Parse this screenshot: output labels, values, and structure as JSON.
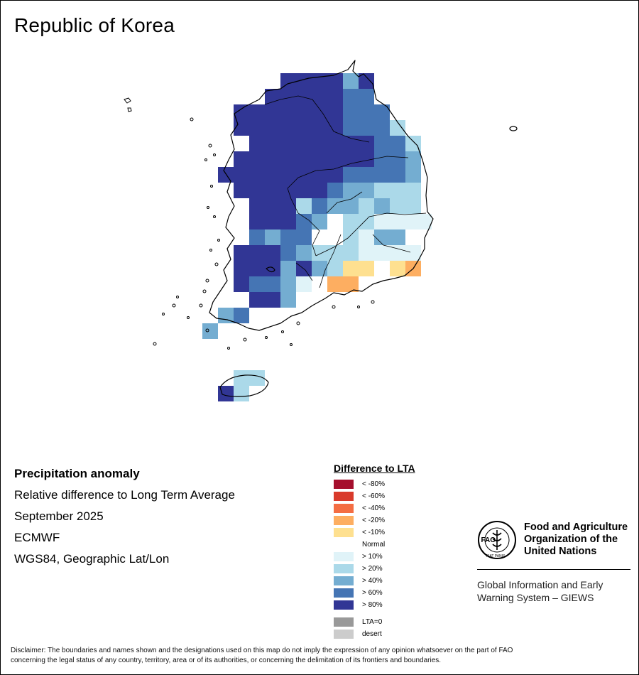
{
  "map_title": "Republic of Korea",
  "info": {
    "heading": "Precipitation anomaly",
    "line1": "Relative difference to Long Term Average",
    "line2": "September 2025",
    "line3": "ECMWF",
    "line4": "WGS84, Geographic Lat/Lon"
  },
  "legend": {
    "title": "Difference to LTA",
    "items": [
      {
        "label": "< -80%",
        "color": "#a50f2d"
      },
      {
        "label": "< -60%",
        "color": "#d93a2b"
      },
      {
        "label": "< -40%",
        "color": "#f46d43"
      },
      {
        "label": "< -20%",
        "color": "#fdae61"
      },
      {
        "label": "< -10%",
        "color": "#fee090"
      },
      {
        "label": "Normal",
        "color": "#ffffff"
      },
      {
        "label": "> 10%",
        "color": "#e0f3f8"
      },
      {
        "label": "> 20%",
        "color": "#abd9e9"
      },
      {
        "label": "> 40%",
        "color": "#74add1"
      },
      {
        "label": "> 60%",
        "color": "#4575b4"
      },
      {
        "label": "> 80%",
        "color": "#313695"
      }
    ],
    "extra": [
      {
        "label": "LTA=0",
        "color": "#999999"
      },
      {
        "label": "desert",
        "color": "#cccccc"
      }
    ]
  },
  "org": {
    "name_line1": "Food and Agriculture",
    "name_line2": "Organization of the",
    "name_line3": "United Nations",
    "logo_text": "FAO",
    "logo_motto": "FIAT PANIS",
    "giews_line1": "Global Information and Early",
    "giews_line2": "Warning System – GIEWS"
  },
  "disclaimer": {
    "line1": "Disclaimer: The boundaries and names shown and the designations used on this map do not imply the expression of any opinion whatsoever on the part of FAO",
    "line2": "concerning the legal status of any country, territory, area or of its authorities, or concerning the delimitation of its frontiers and boundaries."
  }
}
